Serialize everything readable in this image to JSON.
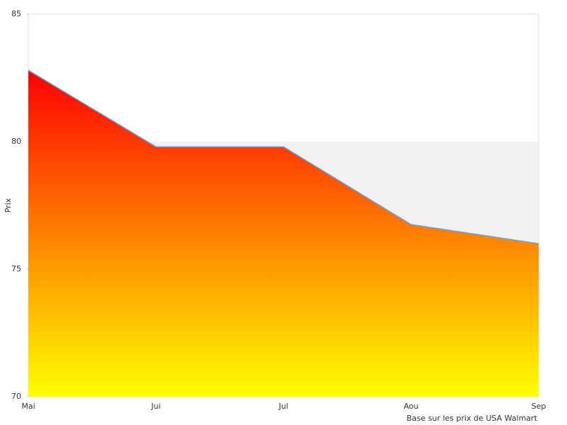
{
  "chart_data": {
    "type": "area",
    "y_label": "Prix",
    "footnote": "Base sur les prix de USA Walmart",
    "categories": [
      "Mai",
      "Jui",
      "Jul",
      "Aou",
      "Sep"
    ],
    "values": [
      82.8,
      79.8,
      79.8,
      76.75,
      76
    ],
    "ylim": [
      70,
      85
    ],
    "yticks": [
      70,
      75,
      80,
      85
    ],
    "line_color": "#6ca0dc",
    "gradient": [
      "#ff0000",
      "#ffff00"
    ],
    "band_color": "#f2f2f2"
  }
}
